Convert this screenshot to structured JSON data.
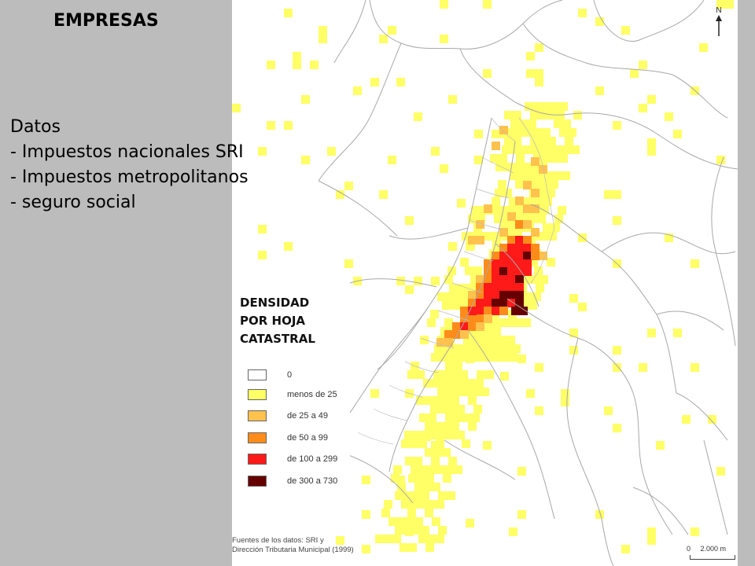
{
  "title": "EMPRESAS",
  "info": {
    "lines": [
      "Datos",
      "- Impuestos nacionales SRI",
      "- Impuestos metropolitanos",
      "- seguro social"
    ]
  },
  "map": {
    "legend_title": [
      "DENSIDAD",
      "POR HOJA",
      "CATASTRAL"
    ],
    "legend": [
      {
        "label": "0",
        "color": "#ffffff"
      },
      {
        "label": "menos de 25",
        "color": "#ffff66"
      },
      {
        "label": "de 25 a 49",
        "color": "#ffc24d"
      },
      {
        "label": "de 50 a 99",
        "color": "#ff8c1a"
      },
      {
        "label": "de 100 a 299",
        "color": "#ff1a1a"
      },
      {
        "label": "de 300 a 730",
        "color": "#660000"
      }
    ],
    "source": [
      "Fuentes de los datos: SRI y",
      "Dirección Tributaria Municipal (1999)"
    ],
    "scale_label": "0     2.000 m",
    "north_label": "N"
  }
}
